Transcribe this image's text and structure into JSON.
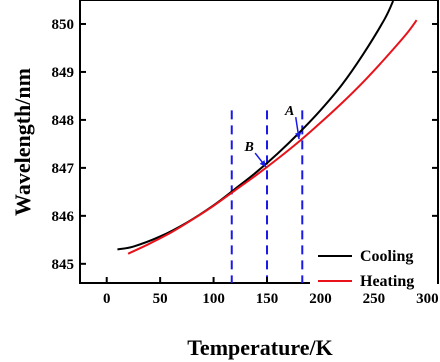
{
  "chart_data": {
    "type": "line",
    "title": "",
    "xlabel": "Temperature/K",
    "ylabel": "Wavelength/nm",
    "xlim": [
      -25,
      310
    ],
    "ylim": [
      844.6,
      850.5
    ],
    "xticks": [
      0,
      50,
      100,
      150,
      200,
      250,
      300
    ],
    "yticks": [
      845,
      846,
      847,
      848,
      849,
      850
    ],
    "xtick_labels": [
      "0",
      "50",
      "100",
      "150",
      "200",
      "250",
      "300"
    ],
    "ytick_labels": [
      "845",
      "846",
      "847",
      "848",
      "849",
      "850"
    ],
    "grid": false,
    "legend_position": "bottom-right",
    "series": [
      {
        "name": "Cooling",
        "color": "#000000",
        "x": [
          10,
          25,
          50,
          75,
          100,
          120,
          140,
          160,
          180,
          200,
          220,
          240,
          260,
          268
        ],
        "y": [
          845.3,
          845.36,
          845.57,
          845.86,
          846.22,
          846.56,
          846.91,
          847.3,
          847.73,
          848.2,
          848.73,
          849.37,
          850.1,
          850.48
        ]
      },
      {
        "name": "Heating",
        "color": "#e8131a",
        "x": [
          20,
          40,
          60,
          80,
          100,
          120,
          140,
          160,
          180,
          200,
          220,
          240,
          260,
          280,
          290
        ],
        "y": [
          845.21,
          845.42,
          845.65,
          845.92,
          846.21,
          846.53,
          846.85,
          847.19,
          847.55,
          847.94,
          848.35,
          848.79,
          849.27,
          849.78,
          850.08
        ]
      }
    ],
    "vlines": {
      "color": "#1a1ae6",
      "x": [
        117,
        150,
        183
      ]
    },
    "annotations": [
      {
        "label": "A",
        "x": 175,
        "y": 848.1,
        "arrow_x": 180,
        "arrow_y": 847.6
      },
      {
        "label": "B",
        "x": 137,
        "y": 847.35,
        "arrow_x": 149,
        "arrow_y": 847.02
      }
    ]
  }
}
